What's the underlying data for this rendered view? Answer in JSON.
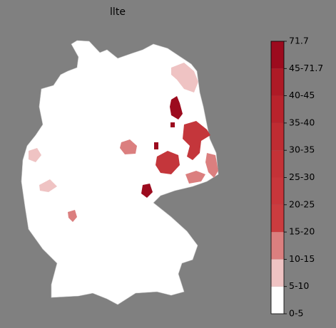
{
  "title": "llte",
  "legend": {
    "labels": [
      "0-5",
      "5-10",
      "10-15",
      "15-20",
      "20-25",
      "25-30",
      "30-35",
      "35-40",
      "40-45",
      "45-71.7",
      "71.7"
    ],
    "colors": [
      "#ffffff",
      "#efc3c3",
      "#db7f7f",
      "#cb3c3f",
      "#c8363b",
      "#c43237",
      "#bf2c32",
      "#b8232c",
      "#ae1a26",
      "#9c0b1e"
    ]
  }
}
